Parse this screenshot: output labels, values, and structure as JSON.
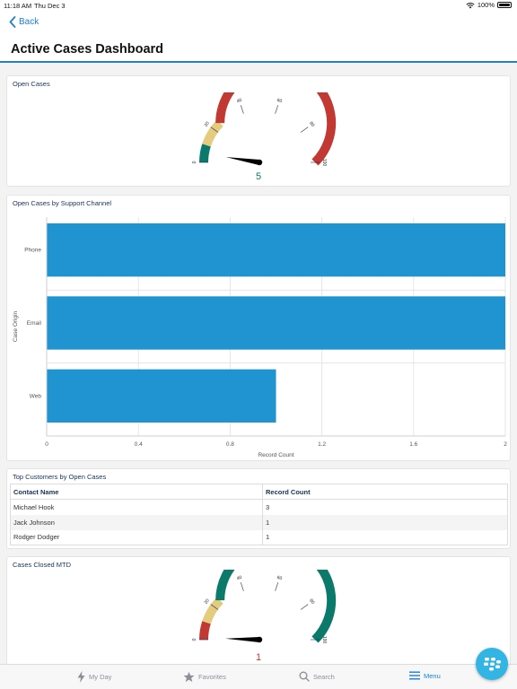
{
  "status_bar": {
    "time": "11:18 AM",
    "date": "Thu Dec 3",
    "battery": "100%",
    "icons": [
      "wifi-icon",
      "battery-icon"
    ]
  },
  "nav": {
    "back_label": "Back",
    "title": "Active Cases Dashboard"
  },
  "colors": {
    "accent": "#1a80d4",
    "bar": "#2093d1",
    "gauge_green": "#0b7a6a",
    "gauge_yellow": "#e4cb7d",
    "gauge_red": "#c23934"
  },
  "open_cases": {
    "title": "Open Cases",
    "value": "5",
    "ticks": [
      "0",
      "20",
      "40",
      "60",
      "80",
      "100"
    ],
    "bands": [
      {
        "from": 0,
        "to": 10,
        "color": "#0b7a6a"
      },
      {
        "from": 10,
        "to": 25,
        "color": "#e4cb7d"
      },
      {
        "from": 25,
        "to": 100,
        "color": "#c23934"
      }
    ],
    "needle": 5
  },
  "support_channel": {
    "title": "Open Cases by Support Channel",
    "chart_data": {
      "type": "bar",
      "orientation": "horizontal",
      "categories": [
        "Phone",
        "Email",
        "Web"
      ],
      "values": [
        2,
        2,
        1
      ],
      "xlabel": "Record Count",
      "ylabel": "Case Origin",
      "xlim": [
        0,
        2
      ],
      "xticks": [
        "0",
        "0.4",
        "0.8",
        "1.2",
        "1.6",
        "2"
      ],
      "grid": true
    }
  },
  "top_customers": {
    "title": "Top Customers by Open Cases",
    "columns": [
      "Contact Name",
      "Record Count"
    ],
    "rows": [
      {
        "name": "Michael Hook",
        "count": "3"
      },
      {
        "name": "Jack Johnson",
        "count": "1"
      },
      {
        "name": "Rodger Dodger",
        "count": "1"
      }
    ]
  },
  "cases_closed": {
    "title": "Cases Closed MTD",
    "value": "1",
    "ticks": [
      "0",
      "20",
      "40",
      "60",
      "80",
      "100"
    ],
    "bands": [
      {
        "from": 0,
        "to": 10,
        "color": "#c23934"
      },
      {
        "from": 10,
        "to": 25,
        "color": "#e4cb7d"
      },
      {
        "from": 25,
        "to": 100,
        "color": "#0b7a6a"
      }
    ],
    "needle": 1
  },
  "tabs": [
    {
      "label": "My Day",
      "icon": "lightning-icon",
      "active": false
    },
    {
      "label": "Favorites",
      "icon": "star-icon",
      "active": false
    },
    {
      "label": "Search",
      "icon": "search-icon",
      "active": false
    },
    {
      "label": "Menu",
      "icon": "menu-icon",
      "active": true
    }
  ]
}
